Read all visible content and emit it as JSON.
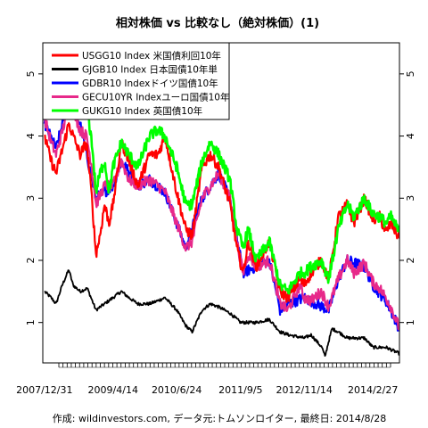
{
  "chart_data": {
    "type": "line",
    "title": "相対株価 vs 比較なし（絶対株価）(1)",
    "caption": "作成: wildinvestors.com, データ元:トムソンロイター, 最終日: 2014/8/28",
    "x_tick_labels": [
      "2007/12/31",
      "2009/4/14",
      "2010/6/24",
      "2011/9/5",
      "2012/11/14",
      "2014/2/27"
    ],
    "x_tick_dates": [
      "2007-12-31",
      "2009-04-14",
      "2010-06-24",
      "2011-09-05",
      "2012-11-14",
      "2014-02-27"
    ],
    "x_range": [
      "2007-12-20",
      "2014-08-28"
    ],
    "y_ticks": [
      1,
      2,
      3,
      4,
      5
    ],
    "ylim": [
      0.35,
      5.5
    ],
    "legend_position": "top-left",
    "series": [
      {
        "name": "USGG10 Index 米国債利回10年",
        "color": "#ff0000",
        "points": [
          [
            "2007-12-31",
            4.0
          ],
          [
            "2008-02-15",
            3.6
          ],
          [
            "2008-03-20",
            3.4
          ],
          [
            "2008-05-15",
            3.9
          ],
          [
            "2008-06-15",
            4.2
          ],
          [
            "2008-07-15",
            4.0
          ],
          [
            "2008-09-01",
            3.7
          ],
          [
            "2008-10-15",
            3.9
          ],
          [
            "2008-11-20",
            3.0
          ],
          [
            "2008-12-18",
            2.1
          ],
          [
            "2009-01-15",
            2.4
          ],
          [
            "2009-02-15",
            2.9
          ],
          [
            "2009-03-18",
            2.6
          ],
          [
            "2009-04-14",
            2.9
          ],
          [
            "2009-06-10",
            3.9
          ],
          [
            "2009-08-01",
            3.6
          ],
          [
            "2009-10-01",
            3.2
          ],
          [
            "2009-12-20",
            3.7
          ],
          [
            "2010-02-15",
            3.7
          ],
          [
            "2010-04-05",
            4.0
          ],
          [
            "2010-06-24",
            3.1
          ],
          [
            "2010-08-25",
            2.5
          ],
          [
            "2010-10-08",
            2.4
          ],
          [
            "2010-12-15",
            3.5
          ],
          [
            "2011-02-10",
            3.7
          ],
          [
            "2011-04-08",
            3.5
          ],
          [
            "2011-06-24",
            2.9
          ],
          [
            "2011-08-10",
            2.2
          ],
          [
            "2011-09-22",
            1.8
          ],
          [
            "2011-10-27",
            2.3
          ],
          [
            "2011-12-20",
            1.9
          ],
          [
            "2012-03-20",
            2.3
          ],
          [
            "2012-06-01",
            1.5
          ],
          [
            "2012-07-25",
            1.4
          ],
          [
            "2012-10-15",
            1.7
          ],
          [
            "2012-11-14",
            1.6
          ],
          [
            "2012-12-31",
            1.8
          ],
          [
            "2013-03-10",
            2.0
          ],
          [
            "2013-05-01",
            1.7
          ],
          [
            "2013-07-05",
            2.7
          ],
          [
            "2013-09-05",
            2.9
          ],
          [
            "2013-10-20",
            2.6
          ],
          [
            "2013-12-31",
            3.0
          ],
          [
            "2014-02-27",
            2.65
          ],
          [
            "2014-04-15",
            2.7
          ],
          [
            "2014-05-28",
            2.45
          ],
          [
            "2014-07-01",
            2.6
          ],
          [
            "2014-08-28",
            2.35
          ]
        ]
      },
      {
        "name": "GJGB10 Index 日本国債10年単",
        "color": "#000000",
        "points": [
          [
            "2007-12-31",
            1.5
          ],
          [
            "2008-02-15",
            1.4
          ],
          [
            "2008-03-20",
            1.3
          ],
          [
            "2008-05-01",
            1.6
          ],
          [
            "2008-06-15",
            1.85
          ],
          [
            "2008-07-15",
            1.6
          ],
          [
            "2008-09-01",
            1.5
          ],
          [
            "2008-10-20",
            1.55
          ],
          [
            "2008-12-18",
            1.2
          ],
          [
            "2009-02-15",
            1.3
          ],
          [
            "2009-04-14",
            1.4
          ],
          [
            "2009-06-10",
            1.5
          ],
          [
            "2009-08-01",
            1.4
          ],
          [
            "2009-10-01",
            1.3
          ],
          [
            "2009-12-20",
            1.3
          ],
          [
            "2010-02-15",
            1.35
          ],
          [
            "2010-04-05",
            1.4
          ],
          [
            "2010-06-24",
            1.2
          ],
          [
            "2010-08-25",
            0.95
          ],
          [
            "2010-10-08",
            0.85
          ],
          [
            "2010-12-15",
            1.2
          ],
          [
            "2011-02-10",
            1.3
          ],
          [
            "2011-04-08",
            1.25
          ],
          [
            "2011-06-24",
            1.15
          ],
          [
            "2011-09-05",
            1.0
          ],
          [
            "2011-12-20",
            1.0
          ],
          [
            "2012-03-20",
            1.05
          ],
          [
            "2012-06-01",
            0.85
          ],
          [
            "2012-08-01",
            0.8
          ],
          [
            "2012-11-14",
            0.75
          ],
          [
            "2012-12-31",
            0.8
          ],
          [
            "2013-03-15",
            0.6
          ],
          [
            "2013-04-05",
            0.45
          ],
          [
            "2013-04-25",
            0.65
          ],
          [
            "2013-05-23",
            0.9
          ],
          [
            "2013-07-05",
            0.85
          ],
          [
            "2013-09-05",
            0.75
          ],
          [
            "2013-12-31",
            0.75
          ],
          [
            "2014-02-27",
            0.6
          ],
          [
            "2014-05-28",
            0.6
          ],
          [
            "2014-08-28",
            0.5
          ]
        ]
      },
      {
        "name": "GDBR10 Indexドイツ国債10年",
        "color": "#0000ff",
        "points": [
          [
            "2007-12-31",
            4.2
          ],
          [
            "2008-03-20",
            3.8
          ],
          [
            "2008-06-15",
            4.6
          ],
          [
            "2008-09-01",
            4.2
          ],
          [
            "2008-12-18",
            3.0
          ],
          [
            "2009-04-14",
            3.2
          ],
          [
            "2009-06-10",
            3.6
          ],
          [
            "2009-10-01",
            3.2
          ],
          [
            "2009-12-20",
            3.3
          ],
          [
            "2010-04-05",
            3.1
          ],
          [
            "2010-06-24",
            2.6
          ],
          [
            "2010-08-25",
            2.2
          ],
          [
            "2010-12-15",
            3.0
          ],
          [
            "2011-04-08",
            3.4
          ],
          [
            "2011-06-24",
            3.0
          ],
          [
            "2011-09-22",
            1.8
          ],
          [
            "2011-12-20",
            1.9
          ],
          [
            "2012-03-20",
            2.0
          ],
          [
            "2012-06-01",
            1.2
          ],
          [
            "2012-07-25",
            1.3
          ],
          [
            "2012-11-14",
            1.4
          ],
          [
            "2013-05-01",
            1.2
          ],
          [
            "2013-07-05",
            1.7
          ],
          [
            "2013-09-05",
            2.0
          ],
          [
            "2013-12-31",
            1.9
          ],
          [
            "2014-02-27",
            1.6
          ],
          [
            "2014-05-28",
            1.35
          ],
          [
            "2014-08-28",
            0.9
          ]
        ]
      },
      {
        "name": "GECU10YR Indexユーロ国債10年",
        "color": "#e7298a",
        "points": [
          [
            "2007-12-31",
            4.3
          ],
          [
            "2008-02-15",
            3.9
          ],
          [
            "2008-03-20",
            3.7
          ],
          [
            "2008-05-15",
            4.2
          ],
          [
            "2008-06-15",
            4.6
          ],
          [
            "2008-07-15",
            4.4
          ],
          [
            "2008-09-01",
            4.1
          ],
          [
            "2008-10-15",
            4.0
          ],
          [
            "2008-11-20",
            3.5
          ],
          [
            "2008-12-18",
            2.9
          ],
          [
            "2009-02-15",
            3.2
          ],
          [
            "2009-04-14",
            3.2
          ],
          [
            "2009-06-10",
            3.6
          ],
          [
            "2009-08-01",
            3.3
          ],
          [
            "2009-10-01",
            3.2
          ],
          [
            "2009-12-20",
            3.3
          ],
          [
            "2010-02-15",
            3.2
          ],
          [
            "2010-04-05",
            3.1
          ],
          [
            "2010-06-24",
            2.6
          ],
          [
            "2010-08-25",
            2.2
          ],
          [
            "2010-10-08",
            2.3
          ],
          [
            "2010-12-15",
            3.0
          ],
          [
            "2011-02-10",
            3.2
          ],
          [
            "2011-04-08",
            3.4
          ],
          [
            "2011-06-24",
            3.0
          ],
          [
            "2011-08-10",
            2.3
          ],
          [
            "2011-09-22",
            1.8
          ],
          [
            "2011-10-27",
            2.1
          ],
          [
            "2011-12-20",
            1.9
          ],
          [
            "2012-03-20",
            2.0
          ],
          [
            "2012-06-01",
            1.3
          ],
          [
            "2012-07-25",
            1.2
          ],
          [
            "2012-10-15",
            1.6
          ],
          [
            "2012-11-14",
            1.4
          ],
          [
            "2012-12-31",
            1.35
          ],
          [
            "2013-03-10",
            1.5
          ],
          [
            "2013-05-01",
            1.25
          ],
          [
            "2013-07-05",
            1.7
          ],
          [
            "2013-09-05",
            2.0
          ],
          [
            "2013-10-20",
            1.8
          ],
          [
            "2013-12-31",
            1.95
          ],
          [
            "2014-02-27",
            1.65
          ],
          [
            "2014-04-15",
            1.55
          ],
          [
            "2014-05-28",
            1.4
          ],
          [
            "2014-07-01",
            1.25
          ],
          [
            "2014-08-28",
            0.9
          ]
        ]
      },
      {
        "name": "GUKG10 Index 英国債10年",
        "color": "#00ff00",
        "points": [
          [
            "2007-12-31",
            4.5
          ],
          [
            "2008-02-15",
            4.5
          ],
          [
            "2008-03-20",
            4.4
          ],
          [
            "2008-05-15",
            4.9
          ],
          [
            "2008-06-15",
            5.2
          ],
          [
            "2008-07-15",
            4.9
          ],
          [
            "2008-09-01",
            4.6
          ],
          [
            "2008-10-15",
            4.5
          ],
          [
            "2008-11-20",
            3.9
          ],
          [
            "2008-12-18",
            3.1
          ],
          [
            "2009-01-15",
            3.4
          ],
          [
            "2009-02-15",
            3.6
          ],
          [
            "2009-03-18",
            3.1
          ],
          [
            "2009-04-14",
            3.5
          ],
          [
            "2009-06-10",
            3.9
          ],
          [
            "2009-08-01",
            3.7
          ],
          [
            "2009-10-01",
            3.5
          ],
          [
            "2009-12-20",
            4.0
          ],
          [
            "2010-02-15",
            4.1
          ],
          [
            "2010-04-05",
            4.0
          ],
          [
            "2010-06-24",
            3.5
          ],
          [
            "2010-08-25",
            2.9
          ],
          [
            "2010-10-08",
            2.9
          ],
          [
            "2010-12-15",
            3.6
          ],
          [
            "2011-02-10",
            3.9
          ],
          [
            "2011-04-08",
            3.7
          ],
          [
            "2011-06-24",
            3.3
          ],
          [
            "2011-08-10",
            2.5
          ],
          [
            "2011-09-22",
            2.2
          ],
          [
            "2011-10-27",
            2.5
          ],
          [
            "2011-12-20",
            2.0
          ],
          [
            "2012-03-20",
            2.3
          ],
          [
            "2012-06-01",
            1.6
          ],
          [
            "2012-07-25",
            1.5
          ],
          [
            "2012-10-15",
            1.8
          ],
          [
            "2012-11-14",
            1.8
          ],
          [
            "2012-12-31",
            1.9
          ],
          [
            "2013-03-10",
            2.0
          ],
          [
            "2013-05-01",
            1.7
          ],
          [
            "2013-07-05",
            2.5
          ],
          [
            "2013-09-05",
            2.9
          ],
          [
            "2013-10-20",
            2.7
          ],
          [
            "2013-12-31",
            3.0
          ],
          [
            "2014-02-27",
            2.75
          ],
          [
            "2014-04-15",
            2.7
          ],
          [
            "2014-05-28",
            2.6
          ],
          [
            "2014-07-01",
            2.7
          ],
          [
            "2014-08-28",
            2.45
          ]
        ]
      }
    ]
  }
}
